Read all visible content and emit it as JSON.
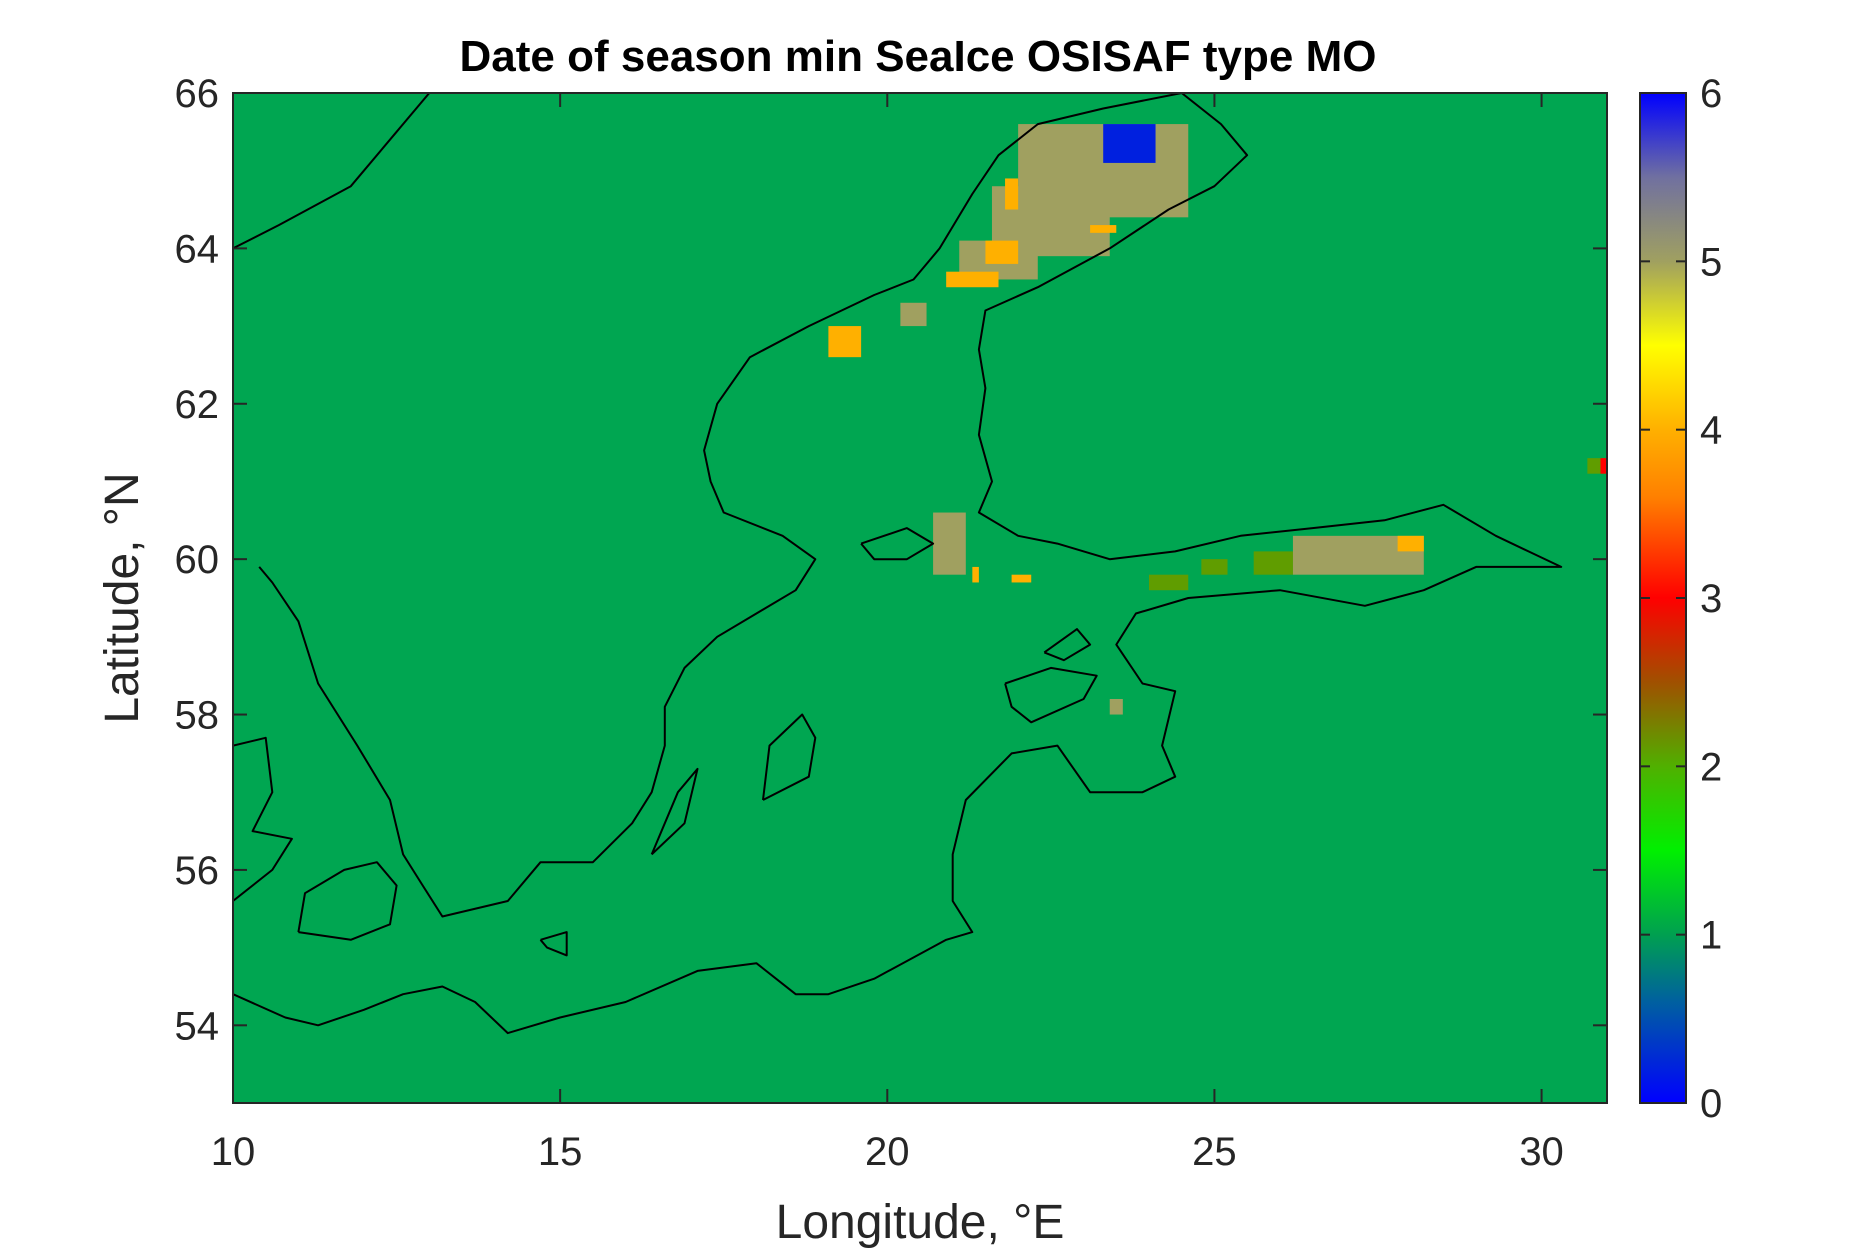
{
  "chart_data": {
    "type": "heatmap",
    "title": "Date of season min SeaIce OSISAF type MO",
    "xlabel": "Longitude, °E",
    "ylabel": "Latitude, °N",
    "xlim": [
      10,
      31
    ],
    "ylim": [
      53,
      66
    ],
    "xticks": [
      10,
      15,
      20,
      25,
      30
    ],
    "yticks": [
      54,
      56,
      58,
      60,
      62,
      64,
      66
    ],
    "colorbar": {
      "range": [
        0,
        6
      ],
      "ticks": [
        0,
        1,
        2,
        3,
        4,
        5,
        6
      ],
      "stops": [
        {
          "v": 0.0,
          "c": "#0000ff"
        },
        {
          "v": 0.6,
          "c": "#0060a0"
        },
        {
          "v": 1.0,
          "c": "#00a050"
        },
        {
          "v": 1.5,
          "c": "#00f000"
        },
        {
          "v": 2.0,
          "c": "#50b000"
        },
        {
          "v": 2.5,
          "c": "#a05000"
        },
        {
          "v": 3.0,
          "c": "#ff0000"
        },
        {
          "v": 3.6,
          "c": "#ff8000"
        },
        {
          "v": 4.0,
          "c": "#ffb000"
        },
        {
          "v": 4.5,
          "c": "#ffff00"
        },
        {
          "v": 5.0,
          "c": "#a0a060"
        },
        {
          "v": 5.5,
          "c": "#7070a0"
        },
        {
          "v": 6.0,
          "c": "#0000ff"
        }
      ]
    },
    "background_value": 1,
    "background_color": "#00a651",
    "regions": [
      {
        "lon": [
          22.0,
          24.6
        ],
        "lat": [
          64.4,
          65.6
        ],
        "value": 5.0
      },
      {
        "lon": [
          21.6,
          23.4
        ],
        "lat": [
          63.9,
          64.8
        ],
        "value": 5.0
      },
      {
        "lon": [
          21.1,
          22.3
        ],
        "lat": [
          63.6,
          64.1
        ],
        "value": 5.0
      },
      {
        "lon": [
          23.3,
          24.1
        ],
        "lat": [
          65.1,
          65.6
        ],
        "value": 0.2
      },
      {
        "lon": [
          20.9,
          21.7
        ],
        "lat": [
          63.5,
          63.7
        ],
        "value": 4.0
      },
      {
        "lon": [
          21.5,
          22.0
        ],
        "lat": [
          63.8,
          64.1
        ],
        "value": 4.0
      },
      {
        "lon": [
          21.8,
          22.0
        ],
        "lat": [
          64.5,
          64.9
        ],
        "value": 4.0
      },
      {
        "lon": [
          23.1,
          23.5
        ],
        "lat": [
          64.2,
          64.3
        ],
        "value": 4.0
      },
      {
        "lon": [
          19.1,
          19.6
        ],
        "lat": [
          62.6,
          63.0
        ],
        "value": 4.0
      },
      {
        "lon": [
          20.2,
          20.6
        ],
        "lat": [
          63.0,
          63.3
        ],
        "value": 5.0
      },
      {
        "lon": [
          20.7,
          21.2
        ],
        "lat": [
          59.8,
          60.6
        ],
        "value": 5.0
      },
      {
        "lon": [
          21.3,
          21.4
        ],
        "lat": [
          59.7,
          59.9
        ],
        "value": 4.0
      },
      {
        "lon": [
          21.9,
          22.2
        ],
        "lat": [
          59.7,
          59.8
        ],
        "value": 4.0
      },
      {
        "lon": [
          24.0,
          24.6
        ],
        "lat": [
          59.6,
          59.8
        ],
        "value": 2.1
      },
      {
        "lon": [
          24.8,
          25.2
        ],
        "lat": [
          59.8,
          60.0
        ],
        "value": 2.1
      },
      {
        "lon": [
          25.6,
          26.2
        ],
        "lat": [
          59.8,
          60.1
        ],
        "value": 2.1
      },
      {
        "lon": [
          26.2,
          28.2
        ],
        "lat": [
          59.8,
          60.3
        ],
        "value": 5.0
      },
      {
        "lon": [
          27.8,
          28.2
        ],
        "lat": [
          60.1,
          60.3
        ],
        "value": 4.0
      },
      {
        "lon": [
          23.4,
          23.6
        ],
        "lat": [
          58.0,
          58.2
        ],
        "value": 5.0
      },
      {
        "lon": [
          30.7,
          31.0
        ],
        "lat": [
          61.1,
          61.3
        ],
        "value": 2.1
      },
      {
        "lon": [
          30.9,
          31.0
        ],
        "lat": [
          61.1,
          61.3
        ],
        "value": 3.0
      }
    ],
    "coastlines": [
      {
        "name": "swedish-coast",
        "points": [
          [
            10.0,
            64.0
          ],
          [
            10.7,
            64.3
          ],
          [
            11.8,
            64.8
          ],
          [
            12.5,
            65.5
          ],
          [
            13.0,
            66.0
          ]
        ]
      },
      {
        "name": "scandinavia-east-coast",
        "points": [
          [
            24.5,
            66.0
          ],
          [
            23.3,
            65.8
          ],
          [
            22.3,
            65.6
          ],
          [
            21.7,
            65.2
          ],
          [
            21.3,
            64.7
          ],
          [
            20.8,
            64.0
          ],
          [
            20.4,
            63.6
          ],
          [
            19.8,
            63.4
          ],
          [
            18.8,
            63.0
          ],
          [
            17.9,
            62.6
          ],
          [
            17.4,
            62.0
          ],
          [
            17.2,
            61.4
          ],
          [
            17.3,
            61.0
          ],
          [
            17.5,
            60.6
          ],
          [
            18.4,
            60.3
          ],
          [
            18.9,
            60.0
          ],
          [
            18.6,
            59.6
          ],
          [
            18.0,
            59.3
          ],
          [
            17.4,
            59.0
          ],
          [
            16.9,
            58.6
          ],
          [
            16.6,
            58.1
          ],
          [
            16.6,
            57.6
          ],
          [
            16.4,
            57.0
          ],
          [
            16.1,
            56.6
          ],
          [
            15.5,
            56.1
          ],
          [
            14.7,
            56.1
          ],
          [
            14.2,
            55.6
          ],
          [
            13.2,
            55.4
          ],
          [
            12.9,
            55.8
          ],
          [
            12.6,
            56.2
          ],
          [
            12.4,
            56.9
          ],
          [
            11.9,
            57.6
          ],
          [
            11.3,
            58.4
          ],
          [
            11.0,
            59.2
          ],
          [
            10.6,
            59.7
          ],
          [
            10.4,
            59.9
          ]
        ]
      },
      {
        "name": "finnish-coast",
        "points": [
          [
            24.5,
            66.0
          ],
          [
            25.1,
            65.6
          ],
          [
            25.5,
            65.2
          ],
          [
            25.0,
            64.8
          ],
          [
            24.3,
            64.5
          ],
          [
            23.4,
            64.0
          ],
          [
            22.3,
            63.5
          ],
          [
            21.5,
            63.2
          ],
          [
            21.4,
            62.7
          ],
          [
            21.5,
            62.2
          ],
          [
            21.4,
            61.6
          ],
          [
            21.6,
            61.0
          ],
          [
            21.4,
            60.6
          ],
          [
            22.0,
            60.3
          ],
          [
            22.6,
            60.2
          ],
          [
            23.4,
            60.0
          ],
          [
            24.4,
            60.1
          ],
          [
            25.4,
            60.3
          ],
          [
            26.5,
            60.4
          ],
          [
            27.6,
            60.5
          ],
          [
            28.5,
            60.7
          ],
          [
            29.3,
            60.3
          ],
          [
            29.8,
            60.1
          ],
          [
            30.3,
            59.9
          ],
          [
            29.8,
            59.9
          ],
          [
            29.0,
            59.9
          ],
          [
            28.2,
            59.6
          ],
          [
            27.3,
            59.4
          ],
          [
            26.0,
            59.6
          ],
          [
            24.6,
            59.5
          ],
          [
            23.8,
            59.3
          ],
          [
            23.5,
            58.9
          ],
          [
            23.9,
            58.4
          ],
          [
            24.4,
            58.3
          ],
          [
            24.2,
            57.6
          ],
          [
            24.4,
            57.2
          ],
          [
            23.9,
            57.0
          ],
          [
            23.1,
            57.0
          ],
          [
            22.6,
            57.6
          ],
          [
            21.9,
            57.5
          ],
          [
            21.2,
            56.9
          ],
          [
            21.0,
            56.2
          ],
          [
            21.0,
            55.6
          ],
          [
            21.3,
            55.2
          ],
          [
            20.9,
            55.1
          ],
          [
            19.8,
            54.6
          ],
          [
            19.1,
            54.4
          ],
          [
            18.6,
            54.4
          ],
          [
            18.0,
            54.8
          ],
          [
            17.1,
            54.7
          ],
          [
            16.0,
            54.3
          ],
          [
            15.0,
            54.1
          ],
          [
            14.2,
            53.9
          ],
          [
            13.7,
            54.3
          ],
          [
            13.2,
            54.5
          ],
          [
            12.6,
            54.4
          ],
          [
            12.0,
            54.2
          ],
          [
            11.3,
            54.0
          ],
          [
            10.8,
            54.1
          ],
          [
            10.0,
            54.4
          ]
        ]
      },
      {
        "name": "danish-coast",
        "points": [
          [
            10.0,
            57.6
          ],
          [
            10.5,
            57.7
          ],
          [
            10.6,
            57.0
          ],
          [
            10.3,
            56.5
          ],
          [
            10.9,
            56.4
          ],
          [
            10.6,
            56.0
          ],
          [
            10.0,
            55.6
          ]
        ]
      },
      {
        "name": "zealand-island",
        "points": [
          [
            11.0,
            55.2
          ],
          [
            11.8,
            55.1
          ],
          [
            12.4,
            55.3
          ],
          [
            12.5,
            55.8
          ],
          [
            12.2,
            56.1
          ],
          [
            11.7,
            56.0
          ],
          [
            11.1,
            55.7
          ],
          [
            11.0,
            55.2
          ]
        ]
      },
      {
        "name": "gotland-island",
        "points": [
          [
            18.1,
            56.9
          ],
          [
            18.8,
            57.2
          ],
          [
            18.9,
            57.7
          ],
          [
            18.7,
            58.0
          ],
          [
            18.2,
            57.6
          ],
          [
            18.1,
            56.9
          ]
        ]
      },
      {
        "name": "oland-island",
        "points": [
          [
            16.4,
            56.2
          ],
          [
            16.9,
            56.6
          ],
          [
            17.1,
            57.3
          ],
          [
            16.8,
            57.0
          ],
          [
            16.4,
            56.2
          ]
        ]
      },
      {
        "name": "saaremaa-island",
        "points": [
          [
            21.8,
            58.4
          ],
          [
            22.5,
            58.6
          ],
          [
            23.2,
            58.5
          ],
          [
            23.0,
            58.2
          ],
          [
            22.2,
            57.9
          ],
          [
            21.9,
            58.1
          ],
          [
            21.8,
            58.4
          ]
        ]
      },
      {
        "name": "hiiumaa-island",
        "points": [
          [
            22.4,
            58.8
          ],
          [
            22.9,
            59.1
          ],
          [
            23.1,
            58.9
          ],
          [
            22.7,
            58.7
          ],
          [
            22.4,
            58.8
          ]
        ]
      },
      {
        "name": "bornholm-island",
        "points": [
          [
            14.7,
            55.1
          ],
          [
            15.1,
            55.2
          ],
          [
            15.1,
            54.9
          ],
          [
            14.8,
            55.0
          ],
          [
            14.7,
            55.1
          ]
        ]
      },
      {
        "name": "aland-islands",
        "points": [
          [
            19.6,
            60.2
          ],
          [
            20.3,
            60.4
          ],
          [
            20.7,
            60.2
          ],
          [
            20.3,
            60.0
          ],
          [
            19.8,
            60.0
          ],
          [
            19.6,
            60.2
          ]
        ]
      }
    ]
  }
}
